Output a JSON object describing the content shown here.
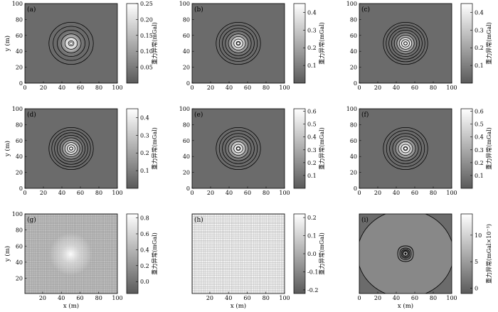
{
  "chart_data": [
    {
      "type": "heatmap",
      "panel_label": "(a)",
      "xlabel": "",
      "ylabel": "y (m)",
      "xlim": [
        0,
        100
      ],
      "ylim": [
        0,
        100
      ],
      "x_ticks": [
        "0",
        "20",
        "40",
        "60",
        "80",
        "100"
      ],
      "y_ticks": [
        "0",
        "20",
        "40",
        "60",
        "80",
        "100"
      ],
      "anomaly_center": [
        50,
        50
      ],
      "anomaly_peak": 0.25,
      "background": 0.0,
      "colorbar": {
        "label": "重力异常(mGal)",
        "ticks": [
          "0.05",
          "0.10",
          "0.15",
          "0.20",
          "0.25"
        ],
        "tick_values": [
          0.05,
          0.1,
          0.15,
          0.2,
          0.25
        ],
        "range": [
          0.0,
          0.25
        ]
      },
      "contour_levels": 6,
      "texture": "none"
    },
    {
      "type": "heatmap",
      "panel_label": "(b)",
      "xlabel": "",
      "ylabel": "",
      "xlim": [
        0,
        100
      ],
      "ylim": [
        0,
        100
      ],
      "x_ticks": [
        "0",
        "20",
        "40",
        "60",
        "80",
        "100"
      ],
      "y_ticks": [
        "0",
        "20",
        "40",
        "60",
        "80",
        "100"
      ],
      "anomaly_center": [
        50,
        50
      ],
      "anomaly_peak": 0.45,
      "background": 0.0,
      "colorbar": {
        "label": "重力异常(mGal)",
        "ticks": [
          "0.1",
          "0.2",
          "0.3",
          "0.4"
        ],
        "tick_values": [
          0.1,
          0.2,
          0.3,
          0.4
        ],
        "range": [
          0.0,
          0.45
        ]
      },
      "contour_levels": 8,
      "texture": "none"
    },
    {
      "type": "heatmap",
      "panel_label": "(c)",
      "xlabel": "",
      "ylabel": "",
      "xlim": [
        0,
        100
      ],
      "ylim": [
        0,
        100
      ],
      "x_ticks": [
        "0",
        "20",
        "40",
        "60",
        "80",
        "100"
      ],
      "y_ticks": [
        "0",
        "20",
        "40",
        "60",
        "80",
        "100"
      ],
      "anomaly_center": [
        50,
        50
      ],
      "anomaly_peak": 0.45,
      "background": 0.0,
      "colorbar": {
        "label": "重力异常(mGal)",
        "ticks": [
          "0.1",
          "0.2",
          "0.3",
          "0.4"
        ],
        "tick_values": [
          0.1,
          0.2,
          0.3,
          0.4
        ],
        "range": [
          0.0,
          0.45
        ]
      },
      "contour_levels": 9,
      "texture": "none"
    },
    {
      "type": "heatmap",
      "panel_label": "(d)",
      "xlabel": "",
      "ylabel": "y (m)",
      "xlim": [
        0,
        100
      ],
      "ylim": [
        0,
        100
      ],
      "x_ticks": [
        "0",
        "20",
        "40",
        "60",
        "80",
        "100"
      ],
      "y_ticks": [
        "0",
        "20",
        "40",
        "60",
        "80",
        "100"
      ],
      "anomaly_center": [
        50,
        50
      ],
      "anomaly_peak": 0.45,
      "background": 0.0,
      "colorbar": {
        "label": "重力异常(mGal)",
        "ticks": [
          "0.1",
          "0.2",
          "0.3",
          "0.4"
        ],
        "tick_values": [
          0.1,
          0.2,
          0.3,
          0.4
        ],
        "range": [
          0.0,
          0.45
        ]
      },
      "contour_levels": 9,
      "texture": "none"
    },
    {
      "type": "heatmap",
      "panel_label": "(e)",
      "xlabel": "",
      "ylabel": "",
      "xlim": [
        0,
        100
      ],
      "ylim": [
        0,
        100
      ],
      "x_ticks": [
        "0",
        "20",
        "40",
        "60",
        "80",
        "100"
      ],
      "y_ticks": [
        "0",
        "20",
        "40",
        "60",
        "80",
        "100"
      ],
      "anomaly_center": [
        50,
        50
      ],
      "anomaly_peak": 0.6,
      "background": 0.0,
      "colorbar": {
        "label": "重力异常(mGal)",
        "ticks": [
          "0.1",
          "0.2",
          "0.3",
          "0.4",
          "0.5",
          "0.6"
        ],
        "tick_values": [
          0.1,
          0.2,
          0.3,
          0.4,
          0.5,
          0.6
        ],
        "range": [
          0.0,
          0.62
        ]
      },
      "contour_levels": 8,
      "texture": "none"
    },
    {
      "type": "heatmap",
      "panel_label": "(f)",
      "xlabel": "",
      "ylabel": "",
      "xlim": [
        0,
        100
      ],
      "ylim": [
        0,
        100
      ],
      "x_ticks": [
        "0",
        "20",
        "40",
        "60",
        "80",
        "100"
      ],
      "y_ticks": [
        "0",
        "20",
        "40",
        "60",
        "80",
        "100"
      ],
      "anomaly_center": [
        50,
        50
      ],
      "anomaly_peak": 0.6,
      "background": 0.0,
      "colorbar": {
        "label": "重力异常(mGal)",
        "ticks": [
          "0.1",
          "0.2",
          "0.3",
          "0.4",
          "0.5",
          "0.6"
        ],
        "tick_values": [
          0.1,
          0.2,
          0.3,
          0.4,
          0.5,
          0.6
        ],
        "range": [
          0.0,
          0.62
        ]
      },
      "contour_levels": 8,
      "texture": "none"
    },
    {
      "type": "heatmap",
      "panel_label": "(g)",
      "xlabel": "x (m)",
      "ylabel": "y (m)",
      "xlim": [
        1,
        100
      ],
      "ylim": [
        1,
        100
      ],
      "x_ticks": [
        "20",
        "40",
        "60",
        "80",
        "100"
      ],
      "y_ticks": [
        "20",
        "40",
        "60",
        "80",
        "100"
      ],
      "anomaly_center": [
        50,
        50
      ],
      "anomaly_peak": 0.6,
      "background": 0.0,
      "colorbar": {
        "label": "重力异常(mGal)",
        "ticks": [
          "0.0",
          "0.2",
          "0.4",
          "0.6",
          "0.8"
        ],
        "tick_values": [
          0.0,
          0.2,
          0.4,
          0.6,
          0.8
        ],
        "range": [
          -0.15,
          0.85
        ]
      },
      "contour_levels": 0,
      "texture": "grid"
    },
    {
      "type": "heatmap",
      "panel_label": "(h)",
      "xlabel": "x (m)",
      "ylabel": "",
      "xlim": [
        1,
        100
      ],
      "ylim": [
        1,
        100
      ],
      "x_ticks": [
        "20",
        "40",
        "60",
        "80",
        "100"
      ],
      "y_ticks": [],
      "anomaly_center": [
        50,
        50
      ],
      "anomaly_peak": 0.0,
      "background": 0.0,
      "colorbar": {
        "label": "重力异常(mGal)",
        "ticks": [
          "-0.2",
          "-0.1",
          "0.0",
          "0.1",
          "0.2"
        ],
        "tick_values": [
          -0.2,
          -0.1,
          0.0,
          0.1,
          0.2
        ],
        "range": [
          -0.22,
          0.22
        ]
      },
      "contour_levels": 0,
      "texture": "grid-light"
    },
    {
      "type": "heatmap",
      "panel_label": "(i)",
      "xlabel": "x (m)",
      "ylabel": "",
      "xlim": [
        0,
        100
      ],
      "ylim": [
        0,
        100
      ],
      "x_ticks": [
        "0",
        "20",
        "40",
        "60",
        "80",
        "100"
      ],
      "y_ticks": [],
      "anomaly_center": [
        50,
        50
      ],
      "anomaly_peak": 14,
      "background": 0.0,
      "colorbar": {
        "label": "重力异常(mGal×10⁻³)",
        "ticks": [
          "0",
          "5",
          "10"
        ],
        "tick_values": [
          0,
          5,
          10
        ],
        "range": [
          -1,
          14
        ]
      },
      "contour_levels": 5,
      "texture": "none"
    }
  ]
}
